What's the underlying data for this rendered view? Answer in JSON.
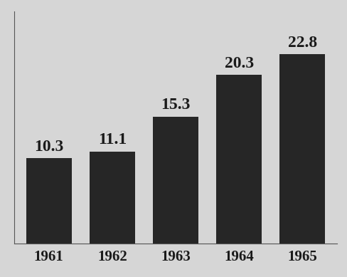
{
  "chart_data": {
    "type": "bar",
    "categories": [
      "1961",
      "1962",
      "1963",
      "1964",
      "1965"
    ],
    "values": [
      10.3,
      11.1,
      15.3,
      20.3,
      22.8
    ],
    "color": "#262626",
    "ylim": [
      0,
      28
    ],
    "data_labels": true,
    "tick_labels": "x"
  }
}
